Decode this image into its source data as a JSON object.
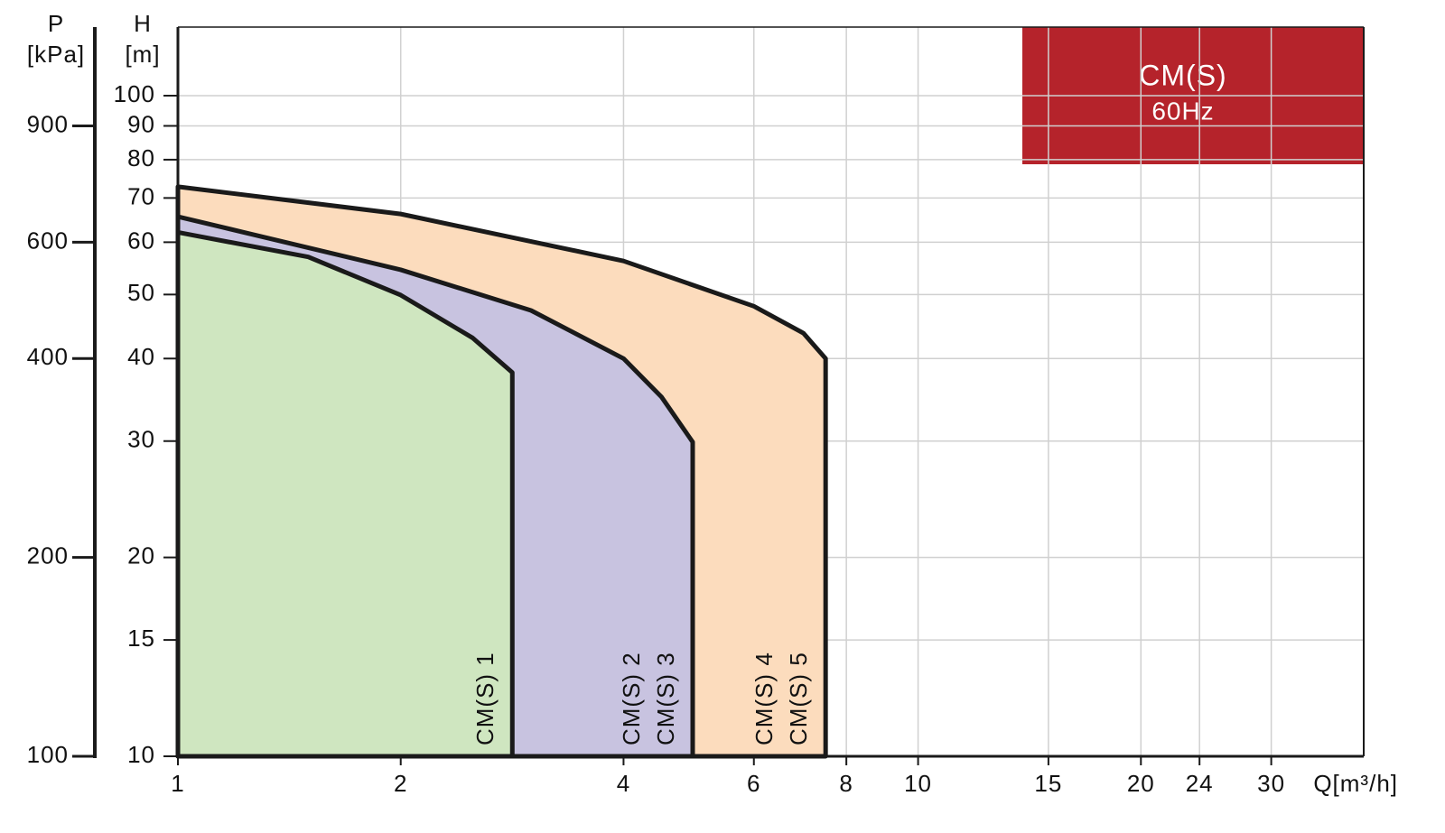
{
  "chart_data": {
    "type": "area",
    "title": "CM(S)",
    "subtitle": "60Hz",
    "y_label": "H",
    "y_unit": "[m]",
    "y2_label": "P",
    "y2_unit": "[kPa]",
    "x_label": "Q[m³/h]",
    "xscale": "log",
    "yscale": "log",
    "grid": true,
    "xlim": [
      1,
      40
    ],
    "ylim": [
      10,
      127
    ],
    "y2lim": [
      100,
      1270
    ],
    "xticks": [
      1,
      2,
      4,
      6,
      8,
      10,
      15,
      20,
      24,
      30
    ],
    "yticks": [
      10,
      15,
      20,
      30,
      40,
      50,
      60,
      70,
      80,
      90,
      100
    ],
    "y2ticks": [
      100,
      200,
      400,
      600,
      900
    ],
    "title_color": "#b5232b",
    "series": [
      {
        "labels": [
          "CM(S) 4",
          "CM(S) 5"
        ],
        "color": "#fcdcbd",
        "x": [
          1,
          2,
          4,
          6,
          7,
          7.5
        ],
        "values": [
          72.8,
          66.2,
          56.2,
          48,
          43.7,
          40
        ]
      },
      {
        "labels": [
          "CM(S) 2",
          "CM(S) 3"
        ],
        "color": "#c8c3e0",
        "x": [
          1,
          2,
          3,
          4,
          4.5,
          4.96
        ],
        "values": [
          65.6,
          54.5,
          47.3,
          40,
          35,
          29.9
        ]
      },
      {
        "labels": [
          "CM(S) 1"
        ],
        "color": "#cfe6c0",
        "x": [
          1,
          1.5,
          2,
          2.5,
          2.83
        ],
        "values": [
          62.1,
          57,
          49.9,
          43,
          38.1
        ]
      }
    ]
  }
}
